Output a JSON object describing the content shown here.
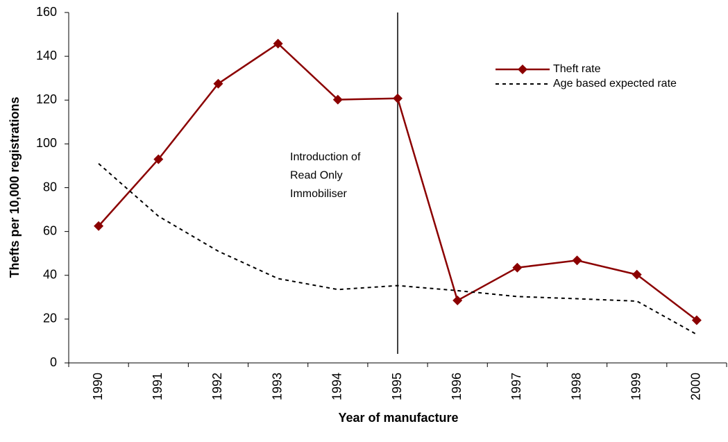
{
  "chart_data": {
    "type": "line",
    "xlabel": "Year of manufacture",
    "ylabel": "Thefts per 10,000 registrations",
    "categories": [
      "1990",
      "1991",
      "1992",
      "1993",
      "1994",
      "1995",
      "1996",
      "1997",
      "1998",
      "1999",
      "2000"
    ],
    "series": [
      {
        "name": "Theft rate",
        "color": "#8b0000",
        "style": "solid",
        "marker": "diamond",
        "values": [
          62.5,
          93,
          127.5,
          145.8,
          120.2,
          120.8,
          28.5,
          43.5,
          46.8,
          40.3,
          19.5
        ]
      },
      {
        "name": "Age based expected rate",
        "color": "#000000",
        "style": "dashed",
        "marker": "none",
        "values": [
          91,
          67,
          51,
          38.5,
          33.5,
          35.3,
          33,
          30.3,
          29.3,
          28.2,
          13
        ]
      }
    ],
    "ylim": [
      0,
      160
    ],
    "yticks": [
      0,
      20,
      40,
      60,
      80,
      100,
      120,
      140,
      160
    ],
    "grid": false,
    "legend": "top-right",
    "reference_line": "1995",
    "annotation": [
      "Introduction of",
      "Read Only",
      "Immobiliser"
    ]
  }
}
